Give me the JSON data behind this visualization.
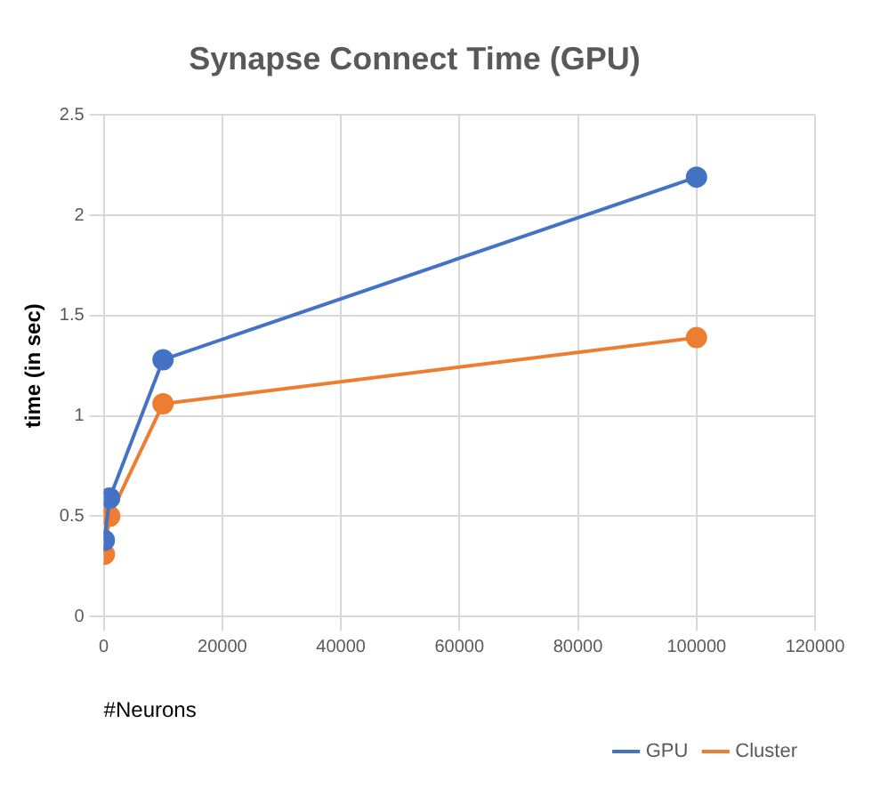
{
  "chart_data": {
    "type": "line",
    "title": "Synapse Connect Time (GPU)",
    "xlabel": "#Neurons",
    "ylabel": "time (in sec)",
    "x": [
      100,
      1000,
      10000,
      100000
    ],
    "series": [
      {
        "name": "GPU",
        "color": "#4472c4",
        "values": [
          0.38,
          0.59,
          1.28,
          2.19
        ]
      },
      {
        "name": "Cluster",
        "color": "#ed7d31",
        "values": [
          0.31,
          0.5,
          1.06,
          1.39
        ]
      }
    ],
    "xlim": [
      0,
      120000
    ],
    "xticks": [
      0,
      20000,
      40000,
      60000,
      80000,
      100000,
      120000
    ],
    "ylim": [
      0,
      2.5
    ],
    "yticks": [
      0,
      0.5,
      1,
      1.5,
      2,
      2.5
    ],
    "grid": true,
    "legend": "bottom",
    "marker": "circle",
    "line_style": "solid"
  }
}
